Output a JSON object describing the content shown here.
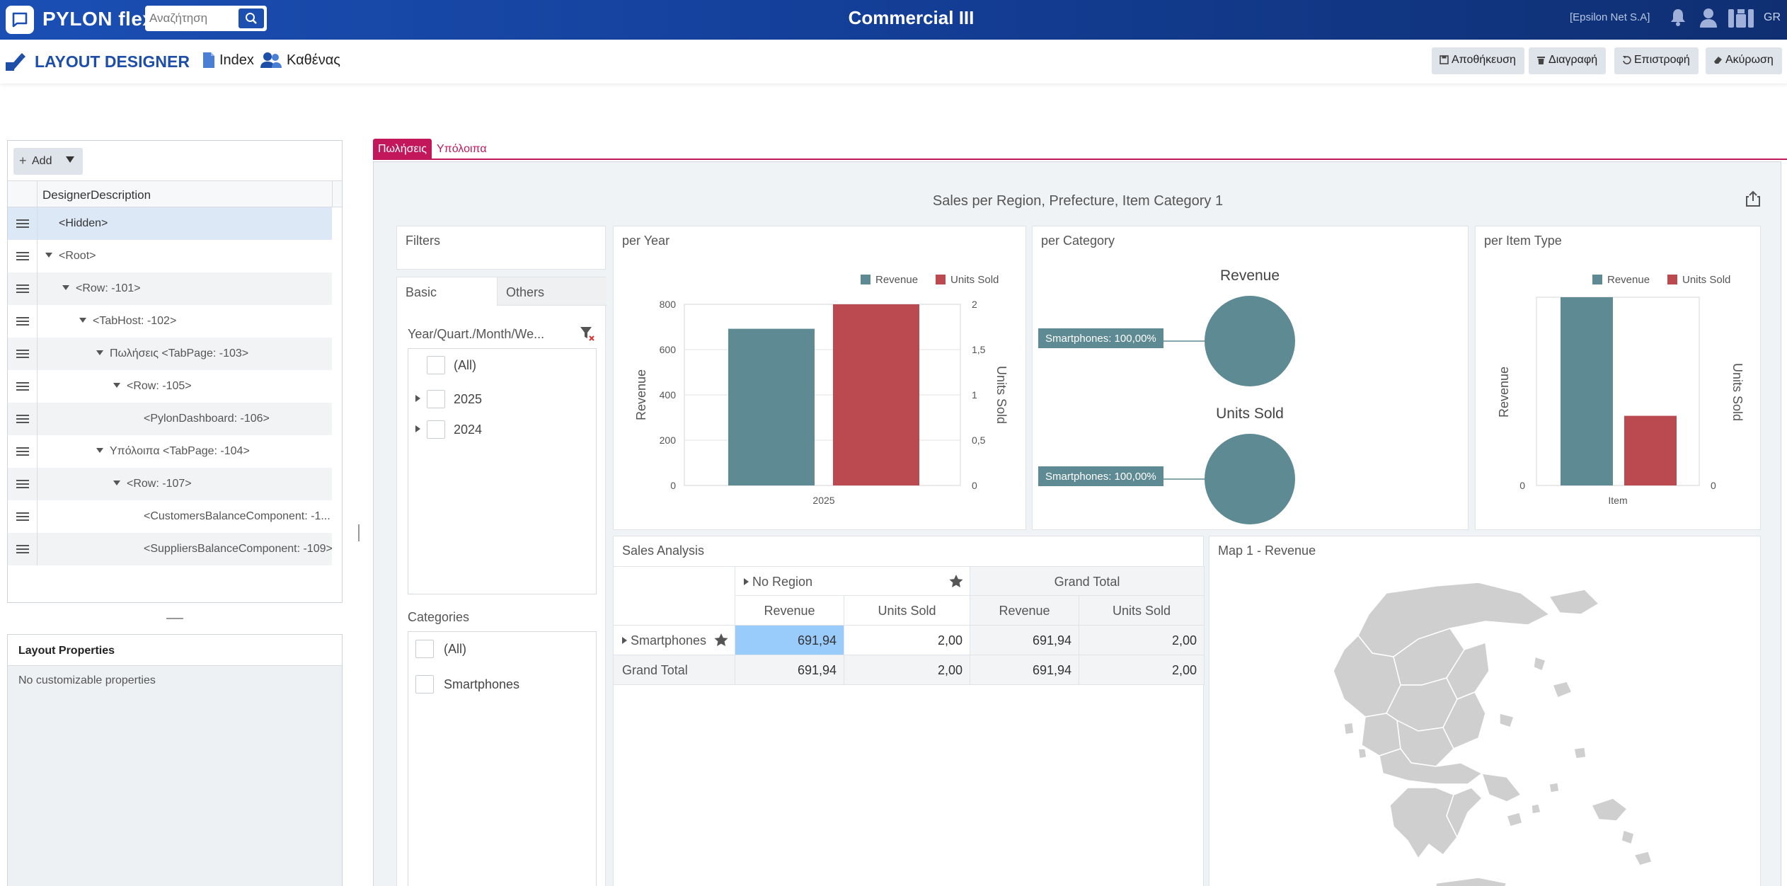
{
  "topbar": {
    "brand": "PYLON flex",
    "search_placeholder": "Αναζήτηση",
    "title": "Commercial III",
    "company": "[Epsilon Net S.A]",
    "language": "GR"
  },
  "designer": {
    "title": "LAYOUT DESIGNER",
    "index_label": "Index",
    "users_label": "Καθένας",
    "buttons": {
      "save": "Αποθήκευση",
      "delete": "Διαγραφή",
      "revert": "Επιστροφή",
      "cancel": "Ακύρωση"
    }
  },
  "tree": {
    "add_label": "Add",
    "column_header": "DesignerDescription",
    "rows": [
      {
        "label": "<Hidden>"
      },
      {
        "label": "<Root>"
      },
      {
        "label": "<Row: -101>"
      },
      {
        "label": "<TabHost: -102>"
      },
      {
        "label": "Πωλήσεις <TabPage: -103>"
      },
      {
        "label": "<Row: -105>"
      },
      {
        "label": "<PylonDashboard: -106>"
      },
      {
        "label": "Υπόλοιπα <TabPage: -104>"
      },
      {
        "label": "<Row: -107>"
      },
      {
        "label": "<CustomersBalanceComponent: -1..."
      },
      {
        "label": "<SuppliersBalanceComponent: -109>"
      }
    ]
  },
  "layout_properties": {
    "title": "Layout Properties",
    "empty_text": "No customizable properties"
  },
  "tabs": {
    "active": "Πωλήσεις",
    "inactive": "Υπόλοιπα"
  },
  "dashboard": {
    "title": "Sales per Region, Prefecture, Item Category 1",
    "filters": {
      "title": "Filters",
      "tab_basic": "Basic",
      "tab_others": "Others",
      "date_label": "Year/Quart./Month/We...",
      "date_items": [
        "(All)",
        "2025",
        "2024"
      ],
      "categories_label": "Categories",
      "category_items": [
        "(All)",
        "Smartphones"
      ]
    },
    "per_year": {
      "title": "per Year"
    },
    "per_category": {
      "title": "per Category"
    },
    "per_item_type": {
      "title": "per Item Type"
    },
    "sales_analysis": {
      "title": "Sales Analysis",
      "col_group_1": "No Region",
      "col_group_2": "Grand Total",
      "col_revenue": "Revenue",
      "col_units": "Units Sold",
      "row_1": {
        "label": "Smartphones",
        "values": [
          "691,94",
          "2,00",
          "691,94",
          "2,00"
        ]
      },
      "row_total": {
        "label": "Grand Total",
        "values": [
          "691,94",
          "2,00",
          "691,94",
          "2,00"
        ]
      }
    },
    "map": {
      "title": "Map 1 - Revenue"
    }
  },
  "colors": {
    "revenue": "#5e8a93",
    "units_sold": "#bb4a50",
    "accent": "#c2185b",
    "brand": "#1d4fa8"
  },
  "chart_data": [
    {
      "type": "bar",
      "title": "per Year",
      "categories": [
        "2025"
      ],
      "series": [
        {
          "name": "Revenue",
          "axis": "left",
          "values": [
            691.94
          ]
        },
        {
          "name": "Units Sold",
          "axis": "right",
          "values": [
            2
          ]
        }
      ],
      "ylabel": "Revenue",
      "y2label": "Units Sold",
      "ylim": [
        0,
        800
      ],
      "y2lim": [
        0,
        2
      ],
      "yticks": [
        "0",
        "200",
        "400",
        "600",
        "800"
      ],
      "y2ticks": [
        "0",
        "0,5",
        "1",
        "1,5",
        "2"
      ],
      "xticks": [
        "2025"
      ],
      "legend": "top-right",
      "grid": true
    },
    {
      "type": "pie",
      "title": "per Category",
      "pies": [
        {
          "name": "Revenue",
          "slices": [
            {
              "label": "Smartphones: 100,00%",
              "value": 100
            }
          ]
        },
        {
          "name": "Units Sold",
          "slices": [
            {
              "label": "Smartphones: 100,00%",
              "value": 100
            }
          ]
        }
      ]
    },
    {
      "type": "bar",
      "title": "per Item Type",
      "categories": [
        "Item"
      ],
      "series": [
        {
          "name": "Revenue",
          "axis": "left",
          "values": [
            691.94
          ]
        },
        {
          "name": "Units Sold",
          "axis": "right",
          "values": [
            2
          ]
        }
      ],
      "ylabel": "Revenue",
      "y2label": "Units Sold",
      "yticks": [
        "0"
      ],
      "y2ticks": [
        "0"
      ],
      "xticks": [
        "Item"
      ],
      "legend": "top-right",
      "grid": false
    }
  ]
}
